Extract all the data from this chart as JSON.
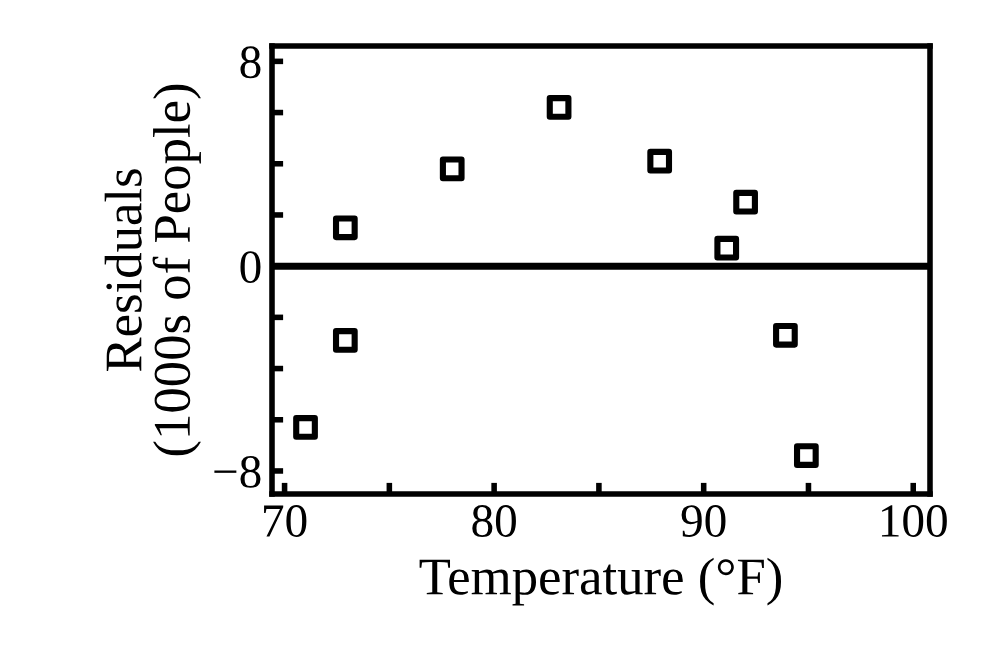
{
  "chart_data": {
    "type": "scatter",
    "xlabel": "Temperature (°F)",
    "ylabel": "Residuals\n(1000s of People)",
    "x": [
      71.0,
      72.9,
      72.9,
      78.0,
      83.1,
      87.9,
      91.1,
      92.0,
      93.9,
      94.9
    ],
    "values": [
      -6.3,
      -2.9,
      1.5,
      3.8,
      6.2,
      4.1,
      0.7,
      2.5,
      -2.7,
      -7.4
    ],
    "color": "#000000",
    "marker": "square",
    "xlim": [
      69.4,
      100.8
    ],
    "ylim": [
      -8.9,
      8.6
    ],
    "xticks": [
      70,
      {
        "value": 75,
        "label": null
      },
      80,
      {
        "value": 85,
        "label": null
      },
      90,
      {
        "value": 95,
        "label": null
      },
      100
    ],
    "yticks": [
      {
        "value": -8,
        "label": "−8"
      },
      {
        "value": -6,
        "label": null
      },
      {
        "value": -4,
        "label": null
      },
      {
        "value": -2,
        "label": null
      },
      0,
      {
        "value": 2,
        "label": null
      },
      {
        "value": 4,
        "label": null
      },
      {
        "value": 6,
        "label": null
      },
      8
    ],
    "ref_lines": [
      {
        "axis": "y",
        "value": 0,
        "color": "#000000"
      }
    ],
    "grid": false,
    "legend": false
  }
}
